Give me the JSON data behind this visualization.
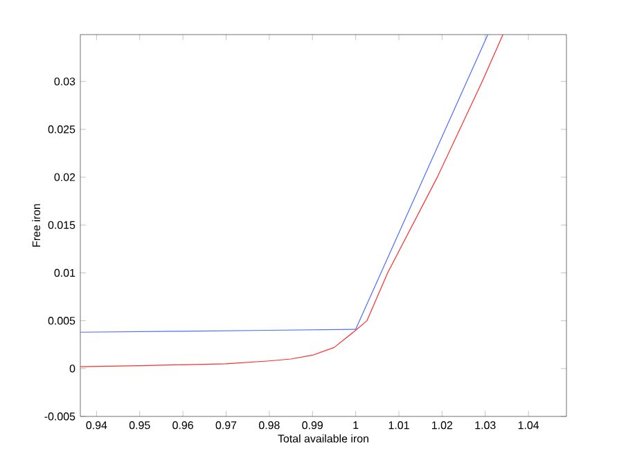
{
  "chart_data": {
    "type": "line",
    "xlabel": "Total available iron",
    "ylabel": "Free iron",
    "xlim": [
      0.93625,
      1.0488
    ],
    "ylim": [
      -0.005,
      0.0349
    ],
    "xticks": [
      0.94,
      0.95,
      0.96,
      0.97,
      0.98,
      0.99,
      1,
      1.01,
      1.02,
      1.03,
      1.04
    ],
    "yticks": [
      -0.005,
      0,
      0.005,
      0.01,
      0.015,
      0.02,
      0.025,
      0.03
    ],
    "grid": false,
    "series": [
      {
        "color": "#4a6cff",
        "x": [
          0.93625,
          0.96,
          0.98,
          1.0,
          1.0306
        ],
        "values": [
          0.0038,
          0.0039,
          0.004,
          0.0041,
          0.0349
        ]
      },
      {
        "color": "#ff2a2a",
        "x": [
          0.93625,
          0.95,
          0.96,
          0.97,
          0.98,
          0.985,
          0.99,
          0.995,
          1.0,
          1.0026,
          1.0074,
          1.0189,
          1.0293,
          1.0341
        ],
        "values": [
          0.0002,
          0.0003,
          0.0004,
          0.0005,
          0.0008,
          0.001,
          0.0014,
          0.0022,
          0.004,
          0.005,
          0.01,
          0.02,
          0.03,
          0.0349
        ]
      }
    ]
  }
}
